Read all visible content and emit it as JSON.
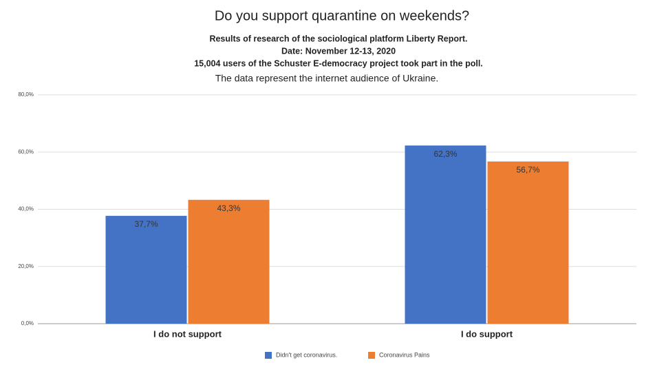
{
  "chart_data": {
    "type": "bar",
    "title": "Do you support quarantine on weekends?",
    "subtitle": [
      "Results of research of the sociological platform Liberty Report.",
      "Date: November 12-13, 2020",
      "15,004 users of the Schuster E-democracy project took part in the poll.",
      "The data represent the internet audience of Ukraine."
    ],
    "categories": [
      "I do not support",
      "I do support"
    ],
    "series": [
      {
        "name": "Didn't get coronavirus.",
        "color": "#4472c4",
        "values": [
          37.7,
          62.3
        ],
        "value_labels": [
          "37,7%",
          "62,3%"
        ]
      },
      {
        "name": "Coronavirus Pains",
        "color": "#ed7d31",
        "values": [
          43.3,
          56.7
        ],
        "value_labels": [
          "43,3%",
          "56,7%"
        ]
      }
    ],
    "ylim": [
      0,
      80
    ],
    "yticks": [
      {
        "value": 0,
        "label": "0,0%"
      },
      {
        "value": 20,
        "label": "20,0%"
      },
      {
        "value": 40,
        "label": "40,0%"
      },
      {
        "value": 60,
        "label": "60,0%"
      },
      {
        "value": 80,
        "label": "80,0%"
      }
    ],
    "grid": true,
    "legend": "bottom"
  }
}
